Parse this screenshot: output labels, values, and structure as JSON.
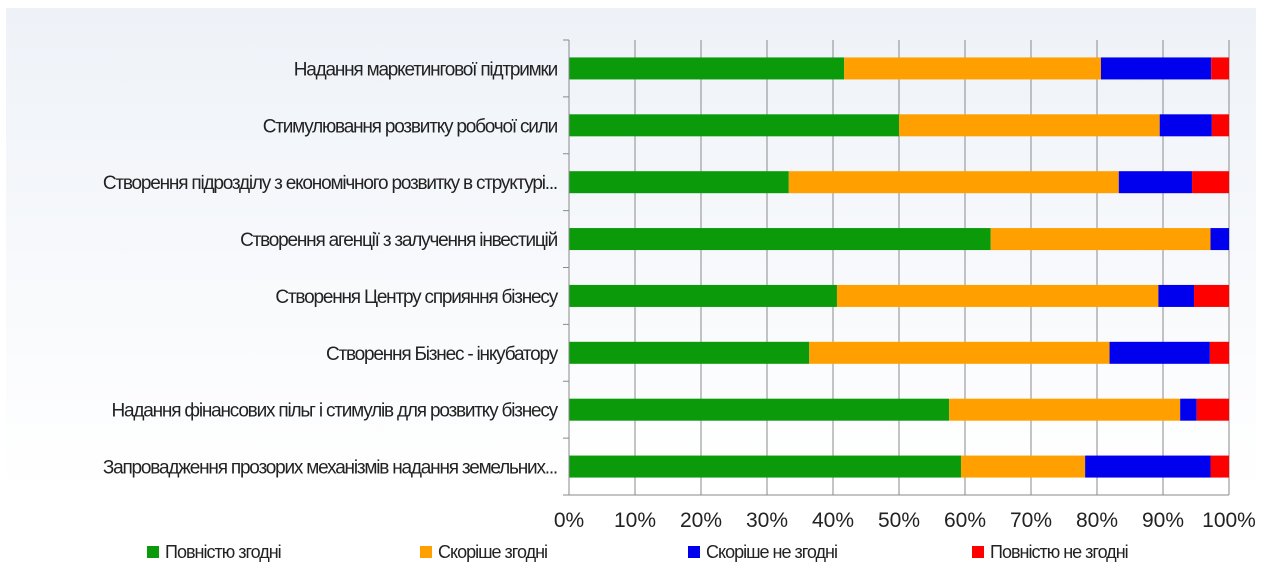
{
  "chart_data": {
    "type": "bar",
    "orientation": "horizontal",
    "stacked": "percent",
    "categories": [
      "Надання маркетингової підтримки",
      "Стимулювання розвитку робочої сили",
      "Створення підрозділу з економічного розвитку в структурі...",
      "Створення агенції з залучення інвестицій",
      "Створення Центру сприяння бізнесу",
      "Створення Бізнес - інкубатору",
      "Надання фінансових пільг і стимулів для розвитку бізнесу",
      "Запровадження прозорих механізмів надання земельних..."
    ],
    "series": [
      {
        "name": "Повністю згодні",
        "color": "#0a9a0a",
        "values": [
          41.7,
          50.0,
          33.3,
          63.9,
          40.6,
          36.4,
          57.6,
          59.4
        ]
      },
      {
        "name": "Скоріше згодні",
        "color": "#ffa000",
        "values": [
          38.9,
          39.5,
          50.0,
          33.3,
          48.7,
          45.5,
          35.0,
          18.8
        ]
      },
      {
        "name": "Скоріше не згодні",
        "color": "#0000ee",
        "values": [
          16.7,
          7.9,
          11.1,
          2.8,
          5.4,
          15.2,
          2.5,
          19.0
        ]
      },
      {
        "name": "Повністю не згодні",
        "color": "#ff0000",
        "values": [
          2.7,
          2.6,
          5.6,
          0.0,
          5.3,
          2.9,
          4.9,
          2.8
        ]
      }
    ],
    "xlim": [
      0,
      100
    ],
    "xticks": [
      "0%",
      "10%",
      "20%",
      "30%",
      "40%",
      "50%",
      "60%",
      "70%",
      "80%",
      "90%",
      "100%"
    ],
    "grid": true,
    "legend_position": "bottom"
  }
}
